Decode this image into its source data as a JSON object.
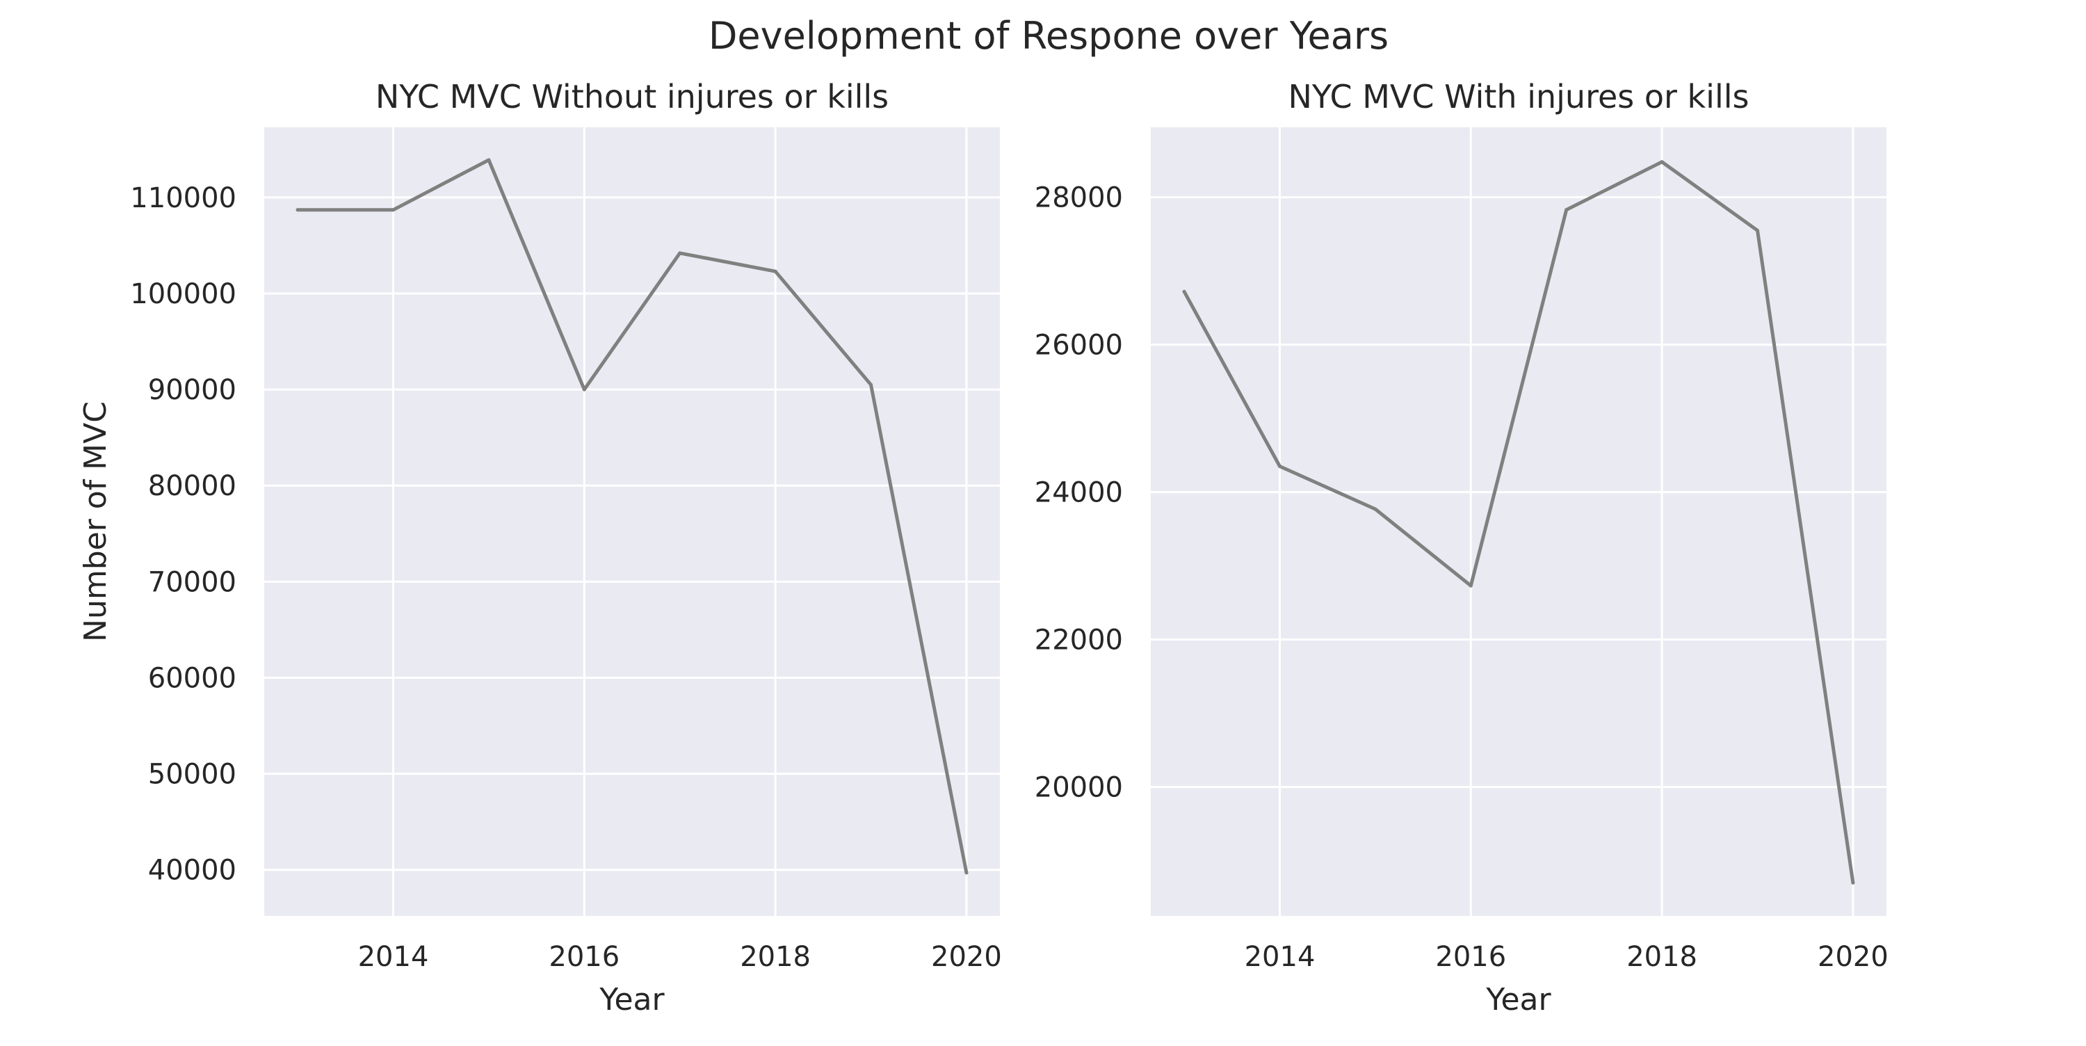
{
  "figure": {
    "suptitle": "Development of Respone over Years",
    "background_color": "#ffffff",
    "axes_face_color": "#eaeaf2",
    "grid_color": "#ffffff",
    "line_color": "#808080"
  },
  "chart_data": [
    {
      "type": "line",
      "title": "NYC MVC Without injures or kills",
      "xlabel": "Year",
      "ylabel": "Number of MVC",
      "grid": true,
      "xlim": [
        2012.65,
        2020.35
      ],
      "ylim": [
        35200,
        117300
      ],
      "xticks": [
        2014,
        2016,
        2018,
        2020
      ],
      "yticks": [
        40000,
        50000,
        60000,
        70000,
        80000,
        90000,
        100000,
        110000
      ],
      "x": [
        2013,
        2014,
        2015,
        2016,
        2017,
        2018,
        2019,
        2020
      ],
      "values": [
        108700,
        108700,
        113900,
        90000,
        104200,
        102300,
        90500,
        39700
      ]
    },
    {
      "type": "line",
      "title": "NYC MVC With injures or kills",
      "xlabel": "Year",
      "ylabel": "",
      "grid": true,
      "xlim": [
        2012.65,
        2020.35
      ],
      "ylim": [
        18250,
        28950
      ],
      "xticks": [
        2014,
        2016,
        2018,
        2020
      ],
      "yticks": [
        20000,
        22000,
        24000,
        26000,
        28000
      ],
      "x": [
        2013,
        2014,
        2015,
        2016,
        2017,
        2018,
        2019,
        2020
      ],
      "values": [
        26720,
        24350,
        23770,
        22730,
        27830,
        28480,
        27550,
        18700
      ]
    }
  ]
}
